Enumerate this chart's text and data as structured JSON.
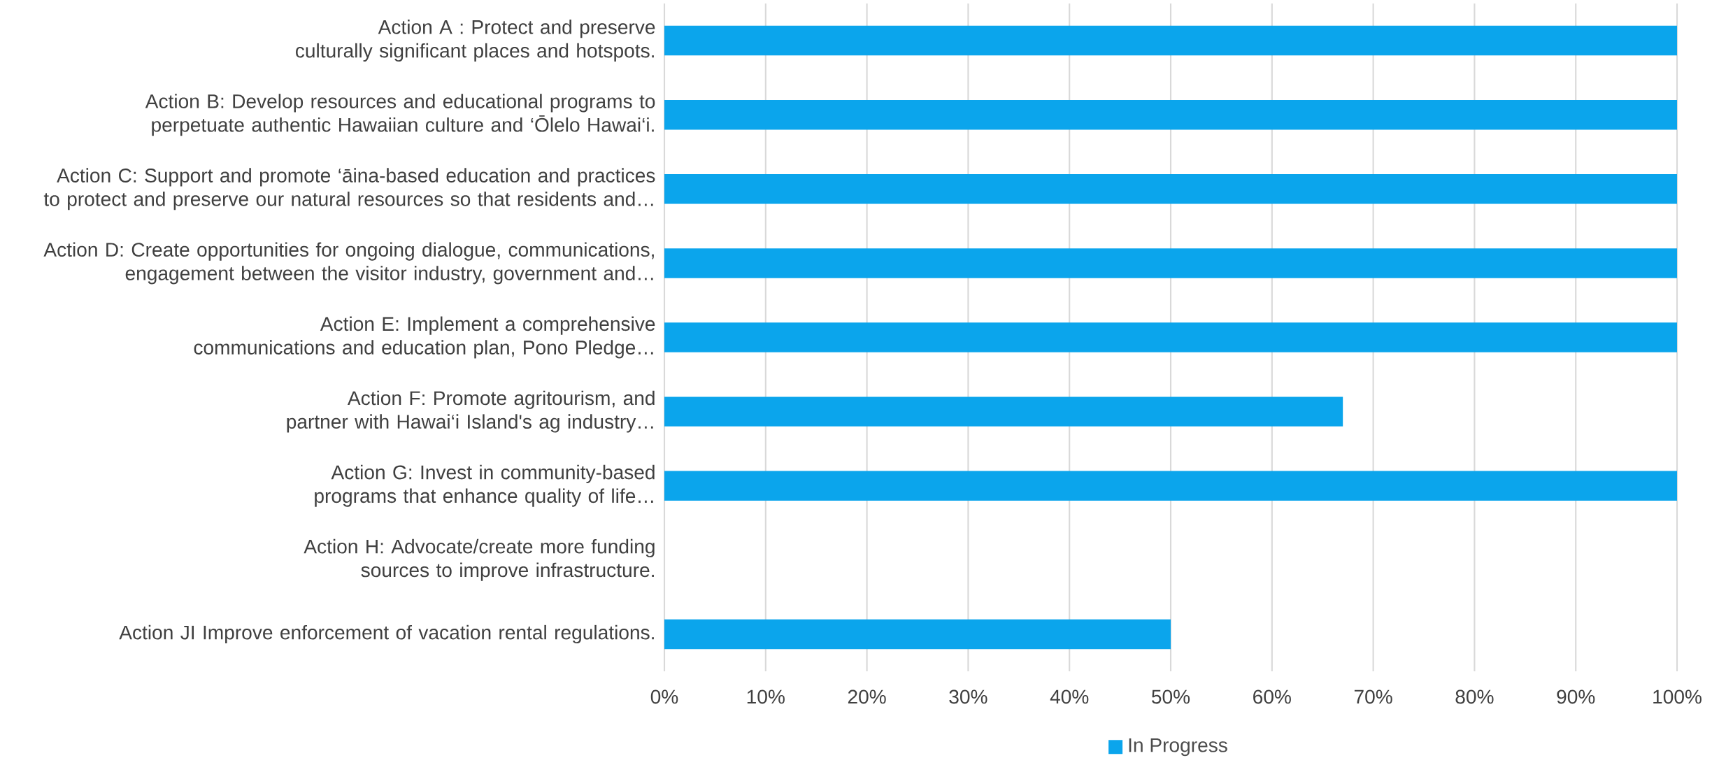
{
  "chart_data": {
    "type": "bar",
    "orientation": "horizontal",
    "categories": [
      "Action A : Protect and preserve culturally significant places and hotspots.",
      "Action B: Develop resources and educational programs to perpetuate authentic Hawaiian culture and ‘Ōlelo Hawai‘i.",
      "Action C: Support and promote ‘āina-based education and practices to protect and preserve our natural resources so that residents and…",
      "Action D: Create opportunities for ongoing dialogue, communications, engagement between the visitor industry, government and…",
      "Action E: Implement a comprehensive communications and education plan, Pono Pledge…",
      "Action F: Promote agritourism, and partner with Hawai‘i Island's ag industry…",
      "Action G: Invest in community-based programs that enhance quality of life…",
      "Action H: Advocate/create more funding sources to improve infrastructure.",
      "Action JI Improve enforcement of vacation rental regulations."
    ],
    "series": [
      {
        "name": "In Progress",
        "color": "#0ba5ec",
        "values": [
          100,
          100,
          100,
          100,
          100,
          67,
          100,
          0,
          50
        ]
      }
    ],
    "xlim": [
      0,
      100
    ],
    "xticks": [
      {
        "value": 0,
        "label": "0%"
      },
      {
        "value": 10,
        "label": "10%"
      },
      {
        "value": 20,
        "label": "20%"
      },
      {
        "value": 30,
        "label": "30%"
      },
      {
        "value": 40,
        "label": "40%"
      },
      {
        "value": 50,
        "label": "50%"
      },
      {
        "value": 60,
        "label": "60%"
      },
      {
        "value": 70,
        "label": "70%"
      },
      {
        "value": 80,
        "label": "80%"
      },
      {
        "value": 90,
        "label": "90%"
      },
      {
        "value": 100,
        "label": "100%"
      }
    ],
    "grid": "x",
    "legend": "bottom"
  }
}
